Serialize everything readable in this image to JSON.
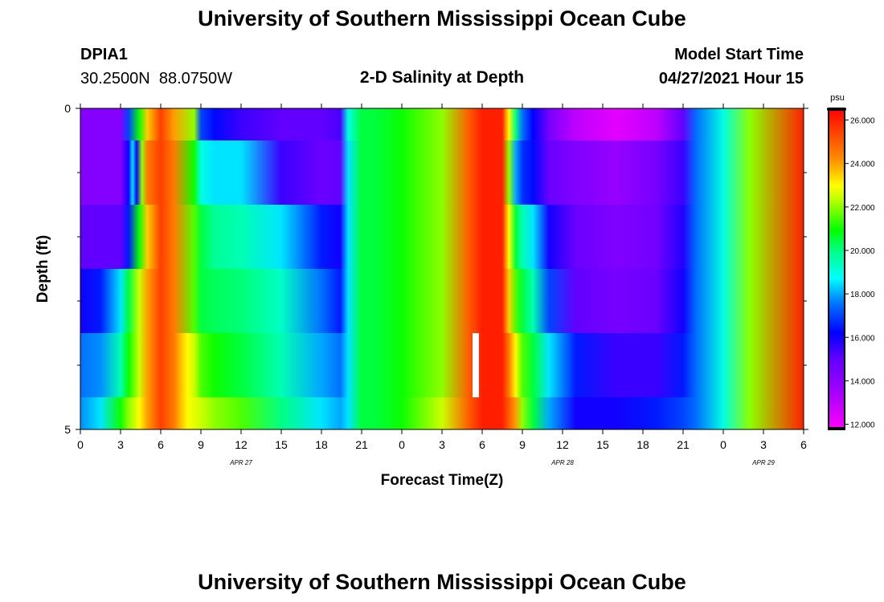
{
  "title": "University of Southern Mississippi Ocean Cube",
  "footer_title": "University of Southern Mississippi Ocean Cube",
  "station": {
    "id": "DPIA1",
    "coords": "30.2500N  88.0750W"
  },
  "plot_title": "2-D Salinity at Depth",
  "model_start": {
    "label": "Model Start Time",
    "value": "04/27/2021 Hour 15"
  },
  "chart_data": {
    "type": "heatmap",
    "title": "2-D Salinity at Depth",
    "xlabel": "Forecast Time(Z)",
    "ylabel": "Depth (ft)",
    "colorbar_label": "psu",
    "colorbar_ticks": [
      "12.000",
      "14.000",
      "16.000",
      "18.000",
      "20.000",
      "22.000",
      "24.000",
      "26.000"
    ],
    "colorbar_range": [
      11.8,
      26.5
    ],
    "x_tick_labels": [
      "0",
      "3",
      "6",
      "9",
      "12",
      "15",
      "18",
      "21",
      "0",
      "3",
      "6",
      "9",
      "12",
      "15",
      "18",
      "21",
      "0",
      "3",
      "6"
    ],
    "date_labels": [
      {
        "text": "APR 27",
        "hour": 12
      },
      {
        "text": "APR 28",
        "hour": 36
      },
      {
        "text": "APR 29",
        "hour": 51
      }
    ],
    "x_range_hours": [
      0,
      54
    ],
    "y_range": [
      0,
      5
    ],
    "y_tick_labels": [
      {
        "value": 0,
        "text": "0"
      },
      {
        "value": 5,
        "text": "5"
      }
    ],
    "y_minor_ticks": [
      1,
      2,
      3,
      4
    ],
    "depth_rows": [
      {
        "depth": [
          0.0,
          0.5
        ],
        "hours": [
          0,
          3,
          3.6,
          4.4,
          5,
          6,
          7,
          8.5,
          9,
          10,
          12,
          15,
          18,
          19.4,
          20,
          21,
          22,
          24,
          27,
          29,
          30,
          31.5,
          32,
          32.5,
          33,
          33.8,
          35,
          37,
          40,
          43,
          45,
          46,
          48,
          50,
          54
        ],
        "values": [
          14.2,
          14.2,
          17,
          21,
          23.5,
          25.5,
          24,
          22,
          17,
          16.3,
          15.5,
          15,
          15,
          15.3,
          19,
          20.5,
          20.5,
          21,
          22,
          25,
          26,
          26,
          23,
          20,
          17.5,
          16.2,
          14.5,
          13,
          12.3,
          13,
          15,
          17.5,
          19,
          22,
          26
        ]
      },
      {
        "depth": [
          0.5,
          1.5
        ],
        "hours": [
          0,
          3,
          3.6,
          3.9,
          4.2,
          4.6,
          5,
          6,
          7,
          8.5,
          9,
          10,
          12,
          15,
          18,
          19.4,
          20,
          21,
          22,
          24,
          27,
          29,
          30,
          31.5,
          32,
          32.5,
          33,
          33.8,
          35,
          37,
          40,
          43,
          45,
          46,
          48,
          50,
          54
        ],
        "values": [
          14.2,
          14.2,
          16,
          18.5,
          16,
          22,
          24.5,
          25.5,
          24.5,
          21,
          19,
          18.5,
          18.5,
          15.5,
          14.8,
          15,
          18.5,
          20.5,
          20.5,
          21,
          22,
          25,
          26,
          26,
          22,
          18,
          16.8,
          16.3,
          14.8,
          14.3,
          13.8,
          14.5,
          15.5,
          17.5,
          19,
          22,
          26
        ]
      },
      {
        "depth": [
          1.5,
          2.5
        ],
        "hours": [
          0,
          3,
          3.6,
          4.4,
          5,
          6,
          7,
          8.5,
          9,
          10,
          12,
          15,
          18,
          19.4,
          20,
          21,
          22,
          24,
          27,
          29,
          30,
          31.5,
          32,
          32.5,
          33,
          33.8,
          35,
          37,
          40,
          43,
          45,
          46,
          48,
          50,
          54
        ],
        "values": [
          15,
          15,
          16.5,
          21,
          23.5,
          25.5,
          24.5,
          21.5,
          20.5,
          19.8,
          19.5,
          18.5,
          16.5,
          16,
          18.5,
          20.5,
          20.5,
          21,
          22,
          25,
          26,
          26,
          23,
          20.5,
          19.5,
          18.5,
          16,
          14.8,
          14.3,
          14.6,
          15.8,
          17.5,
          19,
          22,
          26
        ]
      },
      {
        "depth": [
          2.5,
          3.5
        ],
        "hours": [
          0,
          1.5,
          3,
          3.6,
          4.4,
          5,
          6,
          7,
          8.5,
          9,
          10,
          12,
          15,
          18,
          19.4,
          20,
          21,
          22,
          24,
          27,
          29,
          30,
          31.5,
          32,
          32.5,
          33,
          33.8,
          35,
          37,
          40,
          43,
          45,
          46,
          48,
          50,
          54
        ],
        "values": [
          16,
          16.5,
          18.5,
          20.5,
          22.5,
          24,
          25.5,
          24.5,
          21.5,
          20.5,
          20.3,
          20.1,
          19.3,
          17.5,
          16.5,
          18.5,
          20.5,
          20.5,
          21,
          22,
          25,
          26,
          26,
          23.5,
          21.5,
          20.5,
          19.5,
          17,
          15,
          14.5,
          14.8,
          16,
          17.5,
          19,
          22,
          26
        ]
      },
      {
        "depth": [
          3.5,
          4.5
        ],
        "hours": [
          0,
          1.5,
          3,
          3.6,
          4.4,
          5,
          6,
          7,
          8,
          8.5,
          9,
          10,
          12,
          15,
          18,
          19.4,
          20,
          21,
          22,
          24,
          27,
          29,
          30,
          31.5,
          32,
          32.5,
          33,
          33.8,
          35,
          37,
          40,
          43,
          45,
          46,
          48,
          50,
          54
        ],
        "values": [
          17.5,
          17.8,
          19.5,
          21,
          22.5,
          24,
          25.5,
          24.5,
          23,
          22.5,
          21.5,
          21,
          20.5,
          19.5,
          18,
          17.5,
          18.5,
          20.5,
          20.5,
          21,
          22,
          25,
          26,
          26,
          24.5,
          23,
          21.5,
          20.5,
          18.5,
          16.5,
          15.5,
          15.5,
          16.5,
          17.5,
          19,
          22,
          26
        ]
      },
      {
        "depth": [
          4.5,
          5.0
        ],
        "hours": [
          0,
          1.5,
          3,
          3.6,
          4.4,
          5,
          6,
          7,
          8,
          9,
          10,
          12,
          15,
          18,
          19.4,
          20,
          21,
          22,
          24,
          27,
          29,
          30,
          31.5,
          32,
          32.5,
          33,
          33.8,
          35,
          37,
          40,
          43,
          45,
          46,
          48,
          50,
          54
        ],
        "values": [
          17.8,
          18.5,
          21,
          22,
          23,
          24,
          25.5,
          24.5,
          23,
          22.5,
          22,
          21.5,
          20,
          18.5,
          18,
          18.5,
          20.5,
          20.5,
          21,
          22.5,
          25,
          26,
          26,
          25,
          24,
          22,
          20.5,
          18,
          16,
          16,
          16.5,
          17,
          17.5,
          19,
          22,
          26
        ]
      }
    ]
  }
}
